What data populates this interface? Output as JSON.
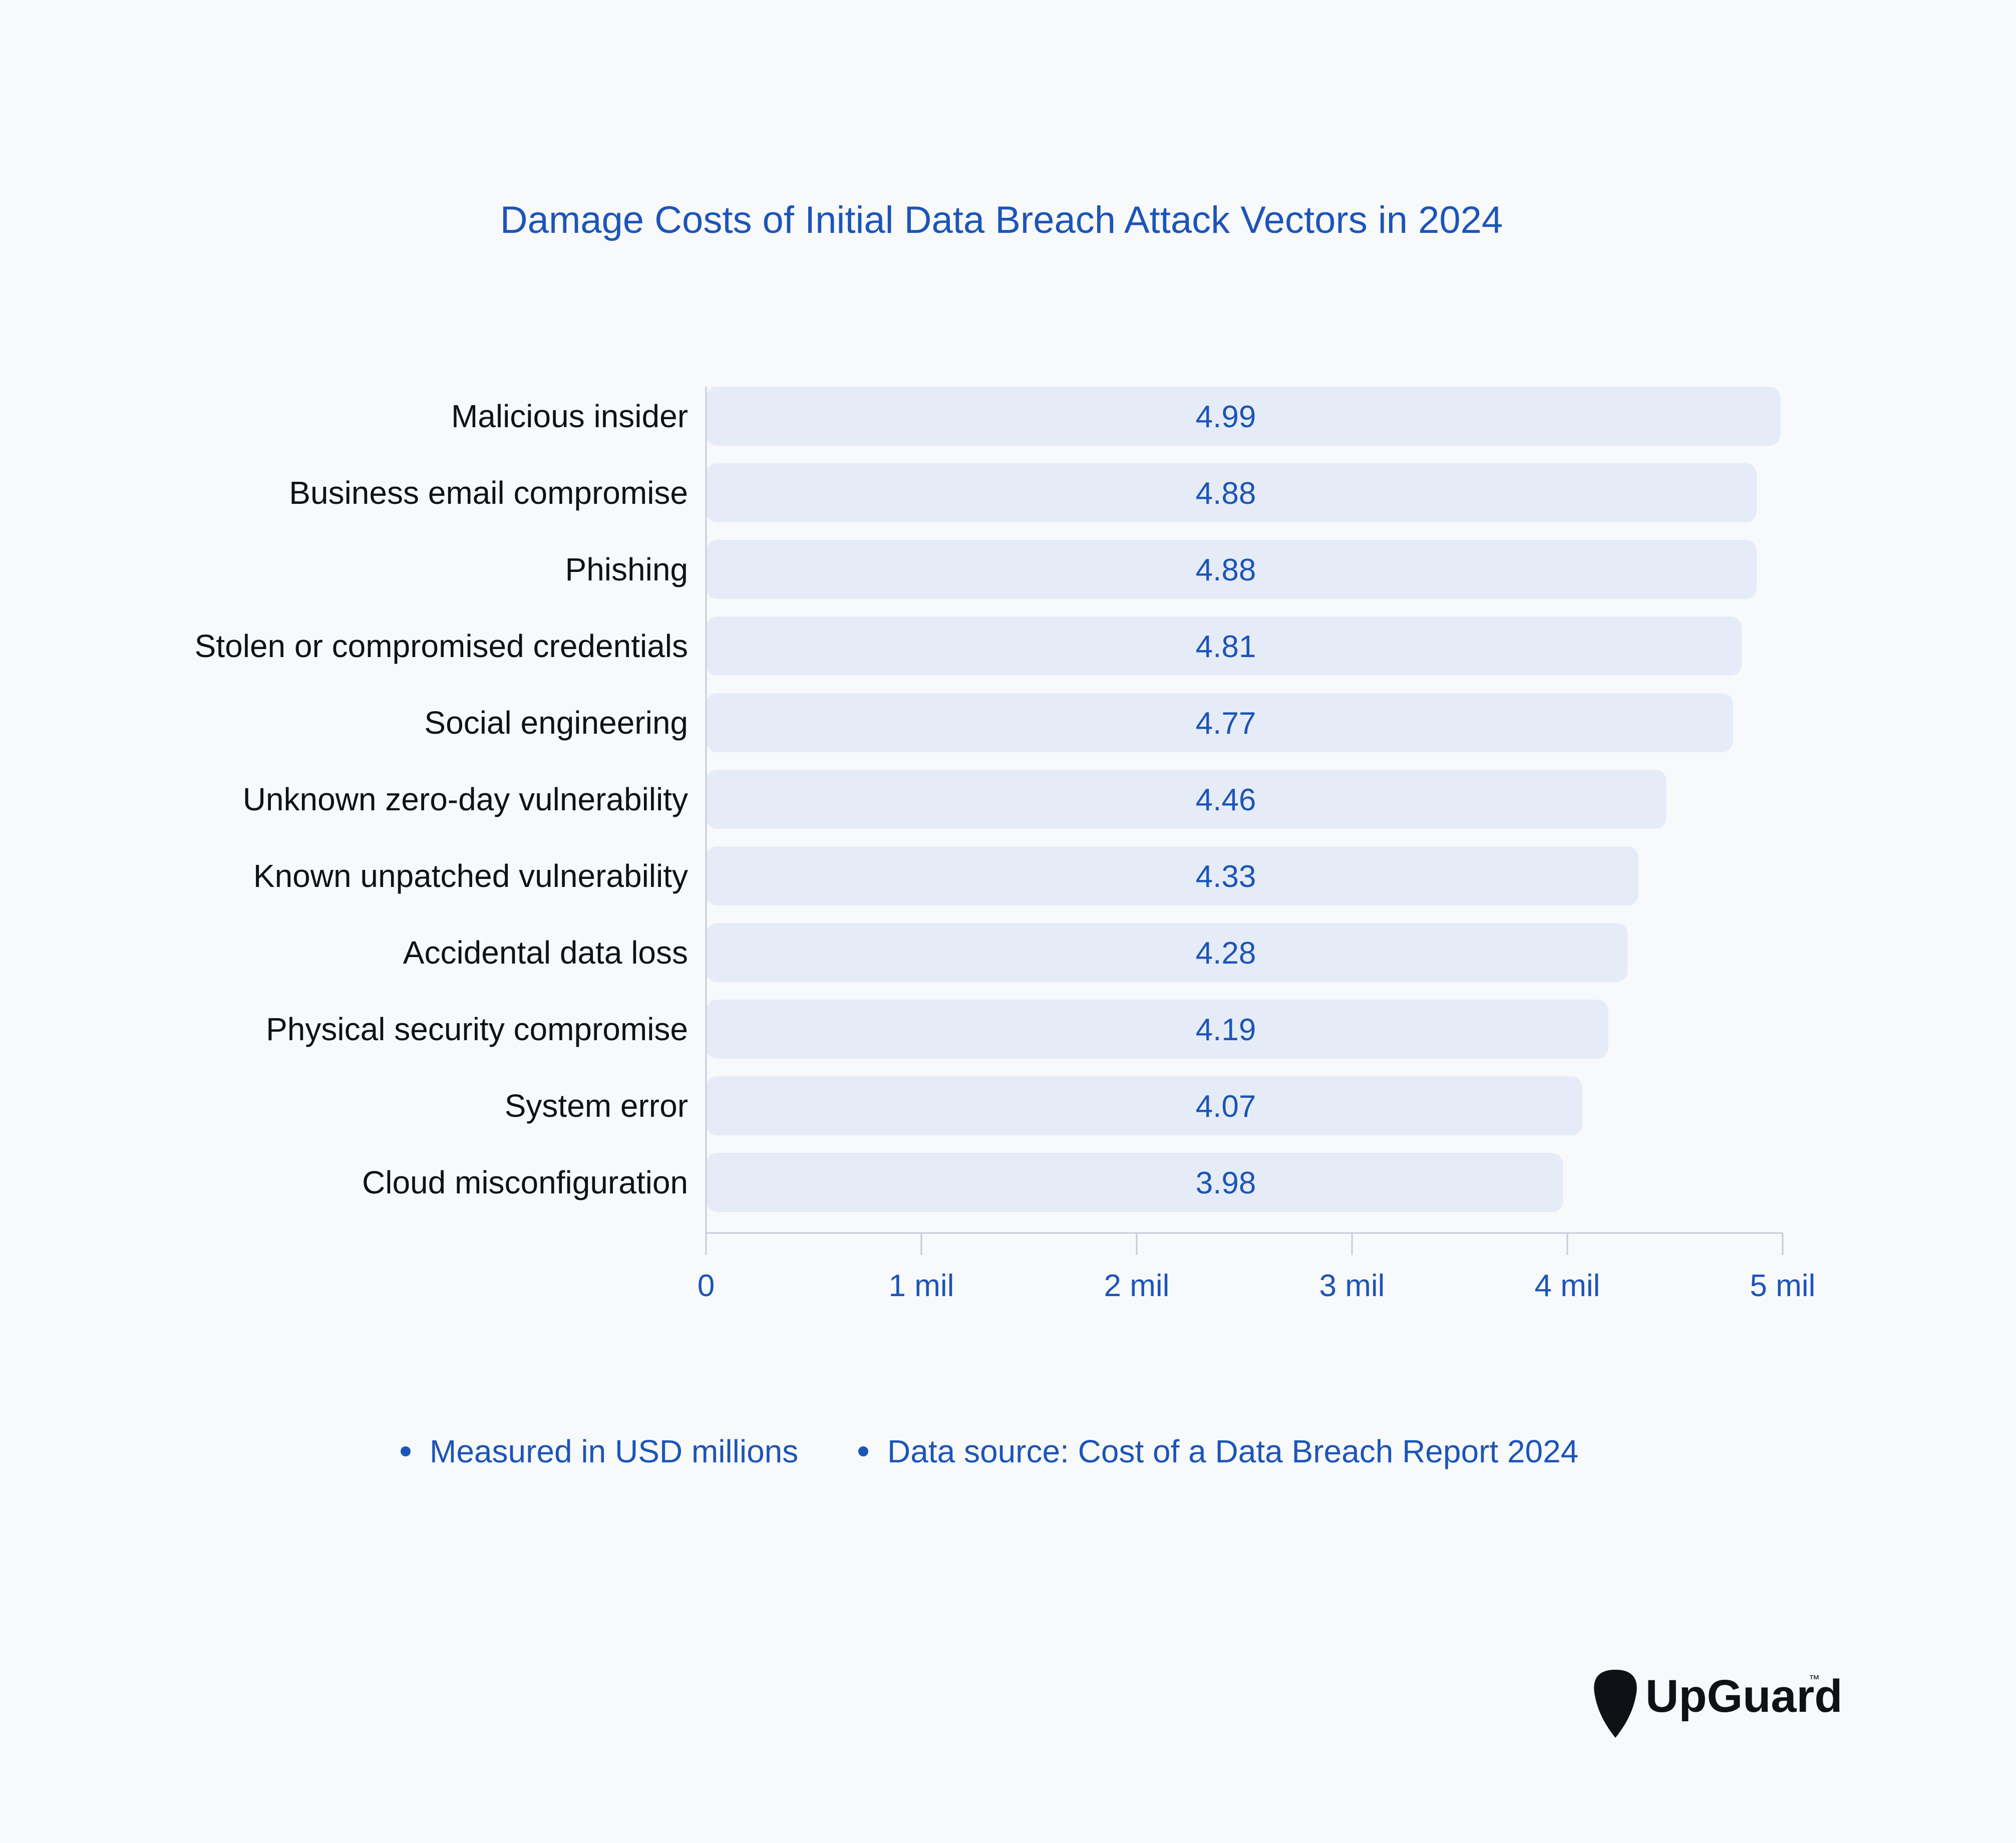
{
  "chart_data": {
    "type": "bar",
    "orientation": "horizontal",
    "title": "Damage Costs of Initial Data Breach Attack Vectors in 2024",
    "xlabel": "",
    "ylabel": "",
    "xlim": [
      0,
      5
    ],
    "grid": false,
    "categories": [
      "Malicious insider",
      "Business email compromise",
      "Phishing",
      "Stolen or compromised credentials",
      "Social engineering",
      "Unknown zero-day vulnerability",
      "Known unpatched vulnerability",
      "Accidental data loss",
      "Physical security compromise",
      "System error",
      "Cloud misconfiguration"
    ],
    "values": [
      4.99,
      4.88,
      4.88,
      4.81,
      4.77,
      4.46,
      4.33,
      4.28,
      4.19,
      4.07,
      3.98
    ],
    "value_labels": [
      "4.99",
      "4.88",
      "4.88",
      "4.81",
      "4.77",
      "4.46",
      "4.33",
      "4.28",
      "4.19",
      "4.07",
      "3.98"
    ],
    "ticks": [
      0,
      1,
      2,
      3,
      4,
      5
    ],
    "tick_labels": [
      "0",
      "1 mil",
      "2 mil",
      "3 mil",
      "4 mil",
      "5 mil"
    ],
    "bar_color": "#e6ecf7",
    "text_color": "#1c55b8"
  },
  "notes": [
    "Measured in USD millions",
    "Data source: Cost of a Data Breach Report 2024"
  ],
  "brand": {
    "name": "UpGuard",
    "trademark": "™"
  },
  "icons": {
    "logo": "guitar-pick-icon"
  }
}
